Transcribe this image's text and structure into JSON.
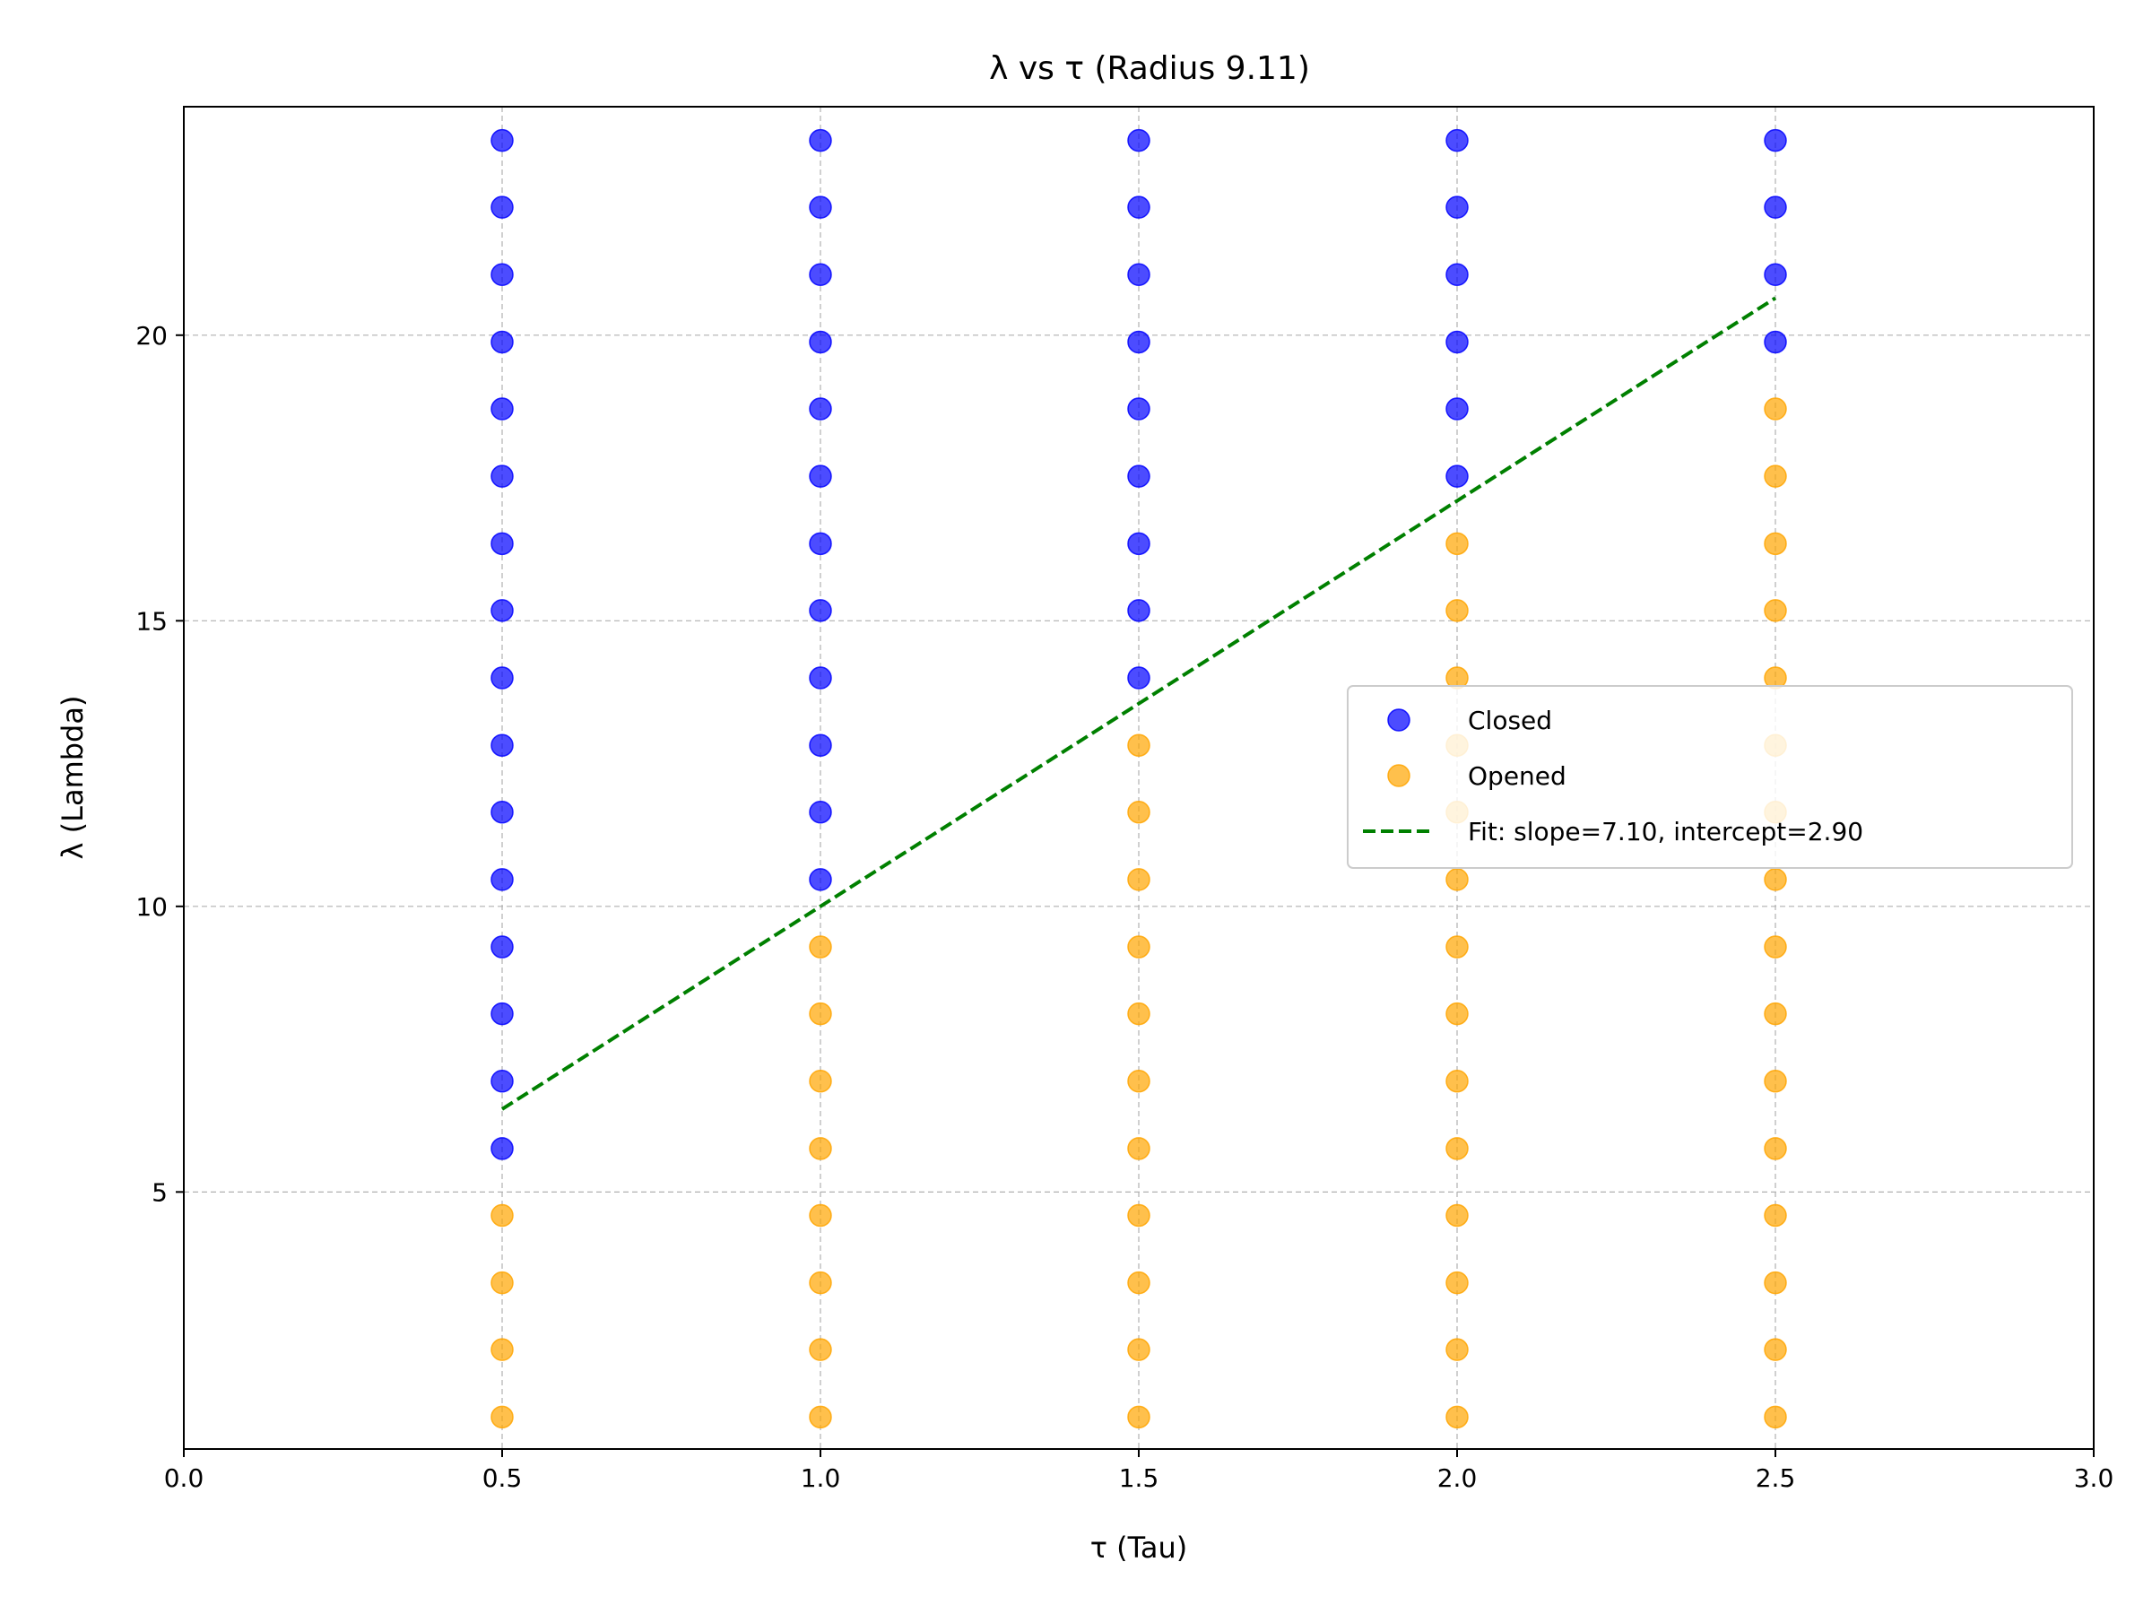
{
  "chart_data": {
    "type": "scatter",
    "title": "λ vs τ (Radius 9.11)",
    "xlabel": "τ (Tau)",
    "ylabel": "λ (Lambda)",
    "xlim": [
      0.0,
      3.0
    ],
    "ylim": [
      0.5,
      24.0
    ],
    "x_ticks": [
      "0.0",
      "0.5",
      "1.0",
      "1.5",
      "2.0",
      "2.5",
      "3.0"
    ],
    "y_ticks": [
      "5",
      "10",
      "15",
      "20"
    ],
    "grid": "dashed, on ticks",
    "legend_position": "center-right",
    "series": [
      {
        "name": "Closed",
        "color": "#0000ff",
        "points": [
          [
            0.5,
            5.76
          ],
          [
            0.5,
            6.94
          ],
          [
            0.5,
            8.12
          ],
          [
            0.5,
            9.29
          ],
          [
            0.5,
            10.47
          ],
          [
            0.5,
            11.65
          ],
          [
            0.5,
            12.82
          ],
          [
            0.5,
            14.0
          ],
          [
            0.5,
            15.18
          ],
          [
            0.5,
            16.35
          ],
          [
            0.5,
            17.53
          ],
          [
            0.5,
            18.71
          ],
          [
            0.5,
            19.88
          ],
          [
            0.5,
            21.06
          ],
          [
            0.5,
            22.24
          ],
          [
            0.5,
            23.41
          ],
          [
            1.0,
            10.47
          ],
          [
            1.0,
            11.65
          ],
          [
            1.0,
            12.82
          ],
          [
            1.0,
            14.0
          ],
          [
            1.0,
            15.18
          ],
          [
            1.0,
            16.35
          ],
          [
            1.0,
            17.53
          ],
          [
            1.0,
            18.71
          ],
          [
            1.0,
            19.88
          ],
          [
            1.0,
            21.06
          ],
          [
            1.0,
            22.24
          ],
          [
            1.0,
            23.41
          ],
          [
            1.5,
            14.0
          ],
          [
            1.5,
            15.18
          ],
          [
            1.5,
            16.35
          ],
          [
            1.5,
            17.53
          ],
          [
            1.5,
            18.71
          ],
          [
            1.5,
            19.88
          ],
          [
            1.5,
            21.06
          ],
          [
            1.5,
            22.24
          ],
          [
            1.5,
            23.41
          ],
          [
            2.0,
            17.53
          ],
          [
            2.0,
            18.71
          ],
          [
            2.0,
            19.88
          ],
          [
            2.0,
            21.06
          ],
          [
            2.0,
            22.24
          ],
          [
            2.0,
            23.41
          ],
          [
            2.5,
            19.88
          ],
          [
            2.5,
            21.06
          ],
          [
            2.5,
            22.24
          ],
          [
            2.5,
            23.41
          ]
        ]
      },
      {
        "name": "Opened",
        "color": "#ffa500",
        "points": [
          [
            0.5,
            1.06
          ],
          [
            0.5,
            2.24
          ],
          [
            0.5,
            3.41
          ],
          [
            0.5,
            4.59
          ],
          [
            1.0,
            1.06
          ],
          [
            1.0,
            2.24
          ],
          [
            1.0,
            3.41
          ],
          [
            1.0,
            4.59
          ],
          [
            1.0,
            5.76
          ],
          [
            1.0,
            6.94
          ],
          [
            1.0,
            8.12
          ],
          [
            1.0,
            9.29
          ],
          [
            1.5,
            1.06
          ],
          [
            1.5,
            2.24
          ],
          [
            1.5,
            3.41
          ],
          [
            1.5,
            4.59
          ],
          [
            1.5,
            5.76
          ],
          [
            1.5,
            6.94
          ],
          [
            1.5,
            8.12
          ],
          [
            1.5,
            9.29
          ],
          [
            1.5,
            10.47
          ],
          [
            1.5,
            11.65
          ],
          [
            1.5,
            12.82
          ],
          [
            2.0,
            1.06
          ],
          [
            2.0,
            2.24
          ],
          [
            2.0,
            3.41
          ],
          [
            2.0,
            4.59
          ],
          [
            2.0,
            5.76
          ],
          [
            2.0,
            6.94
          ],
          [
            2.0,
            8.12
          ],
          [
            2.0,
            9.29
          ],
          [
            2.0,
            10.47
          ],
          [
            2.0,
            11.65
          ],
          [
            2.0,
            12.82
          ],
          [
            2.0,
            14.0
          ],
          [
            2.0,
            15.18
          ],
          [
            2.0,
            16.35
          ],
          [
            2.5,
            1.06
          ],
          [
            2.5,
            2.24
          ],
          [
            2.5,
            3.41
          ],
          [
            2.5,
            4.59
          ],
          [
            2.5,
            5.76
          ],
          [
            2.5,
            6.94
          ],
          [
            2.5,
            8.12
          ],
          [
            2.5,
            9.29
          ],
          [
            2.5,
            10.47
          ],
          [
            2.5,
            11.65
          ],
          [
            2.5,
            12.82
          ],
          [
            2.5,
            14.0
          ],
          [
            2.5,
            15.18
          ],
          [
            2.5,
            16.35
          ],
          [
            2.5,
            17.53
          ],
          [
            2.5,
            18.71
          ]
        ]
      }
    ],
    "fit_line": {
      "name": "Fit: slope=7.10, intercept=2.90",
      "color": "#008000",
      "style": "dashed",
      "x_range": [
        0.5,
        2.5
      ],
      "slope": 7.1,
      "intercept": 2.9
    }
  }
}
